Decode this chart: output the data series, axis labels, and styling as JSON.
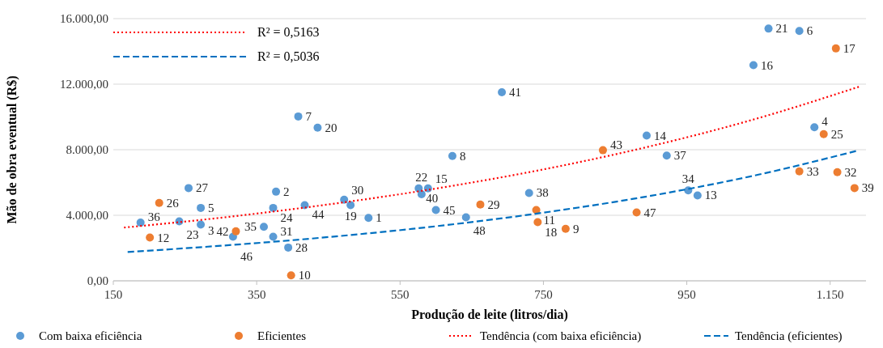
{
  "chart_data": {
    "type": "scatter",
    "xlabel": "Produção de leite (litros/dia)",
    "ylabel": "Mão de obra eventual (R$)",
    "xlim": [
      150,
      1200
    ],
    "xticks": [
      150,
      350,
      550,
      750,
      950,
      {
        "value": 1150,
        "label": "1.150"
      }
    ],
    "ylim": [
      0,
      16000
    ],
    "yticks": [
      {
        "value": 0,
        "label": "0,00"
      },
      {
        "value": 4000,
        "label": "4.000,00"
      },
      {
        "value": 8000,
        "label": "8.000,00"
      },
      {
        "value": 12000,
        "label": "12.000,00"
      },
      {
        "value": 16000,
        "label": "16.000,00"
      }
    ],
    "grid": "y",
    "legend": "bottom",
    "marker": "circle",
    "annotations": [
      "R² = 0,5163",
      "R² = 0,5036",
      {
        "text": "36",
        "x": 188,
        "y": 3550
      },
      {
        "text": "23",
        "x": 242,
        "y": 3630
      },
      {
        "text": "3",
        "x": 272,
        "y": 3430
      },
      {
        "text": "27",
        "x": 255,
        "y": 5660
      },
      {
        "text": "5",
        "x": 272,
        "y": 4450
      },
      {
        "text": "2",
        "x": 377,
        "y": 5440
      },
      {
        "text": "24",
        "x": 373,
        "y": 4450
      },
      {
        "text": "44",
        "x": 417,
        "y": 4620
      },
      {
        "text": "30",
        "x": 472,
        "y": 4950
      },
      {
        "text": "19",
        "x": 481,
        "y": 4620
      },
      {
        "text": "1",
        "x": 506,
        "y": 3840
      },
      {
        "text": "35",
        "x": 360,
        "y": 3300
      },
      {
        "text": "46",
        "x": 317,
        "y": 2690
      },
      {
        "text": "31",
        "x": 373,
        "y": 2690
      },
      {
        "text": "28",
        "x": 394,
        "y": 2030
      },
      {
        "text": "7",
        "x": 408,
        "y": 10030
      },
      {
        "text": "20",
        "x": 435,
        "y": 9350
      },
      {
        "text": "8",
        "x": 623,
        "y": 7620
      },
      {
        "text": "41",
        "x": 692,
        "y": 11510
      },
      {
        "text": "40",
        "x": 576,
        "y": 5640
      },
      {
        "text": "15",
        "x": 589,
        "y": 5640
      },
      {
        "text": "22",
        "x": 580,
        "y": 5280
      },
      {
        "text": "45",
        "x": 600,
        "y": 4320
      },
      {
        "text": "48",
        "x": 642,
        "y": 3880
      },
      {
        "text": "38",
        "x": 730,
        "y": 5360
      },
      {
        "text": "14",
        "x": 894,
        "y": 8860
      },
      {
        "text": "37",
        "x": 922,
        "y": 7640
      },
      {
        "text": "34",
        "x": 952,
        "y": 5520
      },
      {
        "text": "13",
        "x": 965,
        "y": 5210
      },
      {
        "text": "16",
        "x": 1043,
        "y": 13160
      },
      {
        "text": "21",
        "x": 1064,
        "y": 15390
      },
      {
        "text": "6",
        "x": 1107,
        "y": 15250
      },
      {
        "text": "4",
        "x": 1128,
        "y": 9370
      },
      {
        "text": "26",
        "x": 214,
        "y": 4750
      },
      {
        "text": "12",
        "x": 201,
        "y": 2640
      },
      {
        "text": "42",
        "x": 321,
        "y": 3020
      },
      {
        "text": "10",
        "x": 398,
        "y": 330
      },
      {
        "text": "29",
        "x": 662,
        "y": 4650
      },
      {
        "text": "11",
        "x": 740,
        "y": 4320
      },
      {
        "text": "18",
        "x": 742,
        "y": 3580
      },
      {
        "text": "9",
        "x": 781,
        "y": 3170
      },
      {
        "text": "43",
        "x": 833,
        "y": 7970
      },
      {
        "text": "47",
        "x": 880,
        "y": 4170
      },
      {
        "text": "17",
        "x": 1158,
        "y": 14180
      },
      {
        "text": "25",
        "x": 1141,
        "y": 8950
      },
      {
        "text": "33",
        "x": 1107,
        "y": 6680
      },
      {
        "text": "32",
        "x": 1160,
        "y": 6630
      },
      {
        "text": "39",
        "x": 1184,
        "y": 5660
      }
    ],
    "series": [
      {
        "name": "Com baixa eficiência",
        "color": "#5b9bd5",
        "x": [
          188,
          242,
          272,
          255,
          272,
          377,
          373,
          417,
          472,
          481,
          506,
          360,
          317,
          373,
          394,
          408,
          435,
          623,
          692,
          576,
          589,
          580,
          600,
          642,
          730,
          894,
          922,
          952,
          965,
          1043,
          1064,
          1107,
          1128
        ],
        "values": [
          3550,
          3630,
          3430,
          5660,
          4450,
          5440,
          4450,
          4620,
          4950,
          4620,
          3840,
          3300,
          2690,
          2690,
          2030,
          10030,
          9350,
          7620,
          11510,
          5640,
          5640,
          5280,
          4320,
          3880,
          5360,
          8860,
          7640,
          5520,
          5210,
          13160,
          15390,
          15250,
          9370
        ]
      },
      {
        "name": "Eficientes",
        "color": "#ed7d31",
        "x": [
          214,
          201,
          321,
          398,
          662,
          740,
          742,
          781,
          833,
          880,
          1158,
          1141,
          1107,
          1160,
          1184
        ],
        "values": [
          4750,
          2640,
          3020,
          330,
          4650,
          4320,
          3580,
          3170,
          7970,
          4170,
          14180,
          8950,
          6680,
          6630,
          5660
        ]
      },
      {
        "name": "Tendência (com baixa eficiência)",
        "type": "line",
        "color": "#ff0000",
        "line_style": "dotted",
        "marker": "none",
        "x": [
          165,
          300,
          450,
          600,
          750,
          900,
          1050,
          1190
        ],
        "values": [
          3250,
          3850,
          4660,
          5630,
          6800,
          8220,
          9930,
          11840
        ]
      },
      {
        "name": "Tendência (eficientes)",
        "type": "line",
        "color": "#0070c0",
        "line_style": "dashed",
        "marker": "none",
        "x": [
          170,
          300,
          450,
          600,
          750,
          900,
          1050,
          1186
        ],
        "values": [
          1760,
          2140,
          2670,
          3330,
          4160,
          5190,
          6480,
          7920
        ]
      }
    ]
  }
}
